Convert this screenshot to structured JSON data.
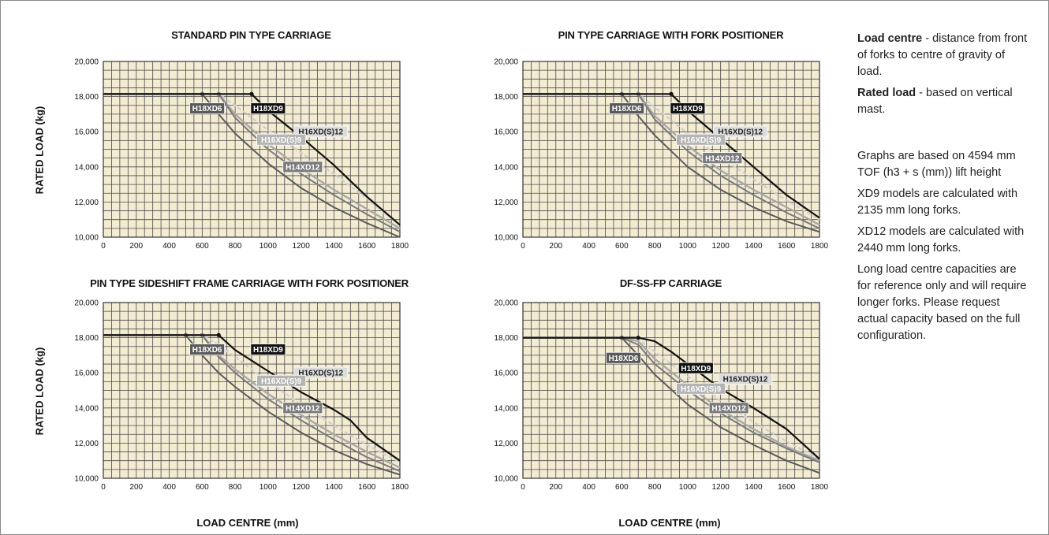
{
  "y_axis_label": "RATED LOAD (kg)",
  "x_axis_label": "LOAD CENTRE (mm)",
  "notes": {
    "load_centre_term": "Load centre",
    "load_centre_text": " - distance from front of forks to centre of gravity of load.",
    "rated_load_term": "Rated load",
    "rated_load_text": " - based on vertical mast.",
    "graphs_basis": "Graphs are based on 4594 mm TOF (h3 + s (mm)) lift height",
    "xd9_note": "XD9 models are calculated with 2135 mm long forks.",
    "xd12_note": "XD12 models are calculated with 2440 mm long forks.",
    "long_load_note": "Long load centre capacities are for reference only and will require longer forks. Please request actual capacity based on the full configuration."
  },
  "colors": {
    "plot_bg": "#f4ecd2",
    "grid": "#4a4a4a",
    "H18XD9": "#111111",
    "H18XD6": "#5a5a5a",
    "H16XD(S)9": "#a8a8a8",
    "H16XD(S)12": "#cfcfcf",
    "H14XD12": "#7a7a7a"
  },
  "chart_data": [
    {
      "type": "line",
      "title": "STANDARD PIN TYPE CARRIAGE",
      "xlabel": "",
      "ylabel": "RATED LOAD (kg)",
      "xlim": [
        0,
        1800
      ],
      "ylim": [
        10000,
        20000
      ],
      "x_ticks": [
        0,
        200,
        400,
        600,
        800,
        1000,
        1200,
        1400,
        1600,
        1800
      ],
      "y_ticks": [
        "10,000",
        "12,000",
        "14,000",
        "16,000",
        "18,000",
        "20,000"
      ],
      "grid": true,
      "series": [
        {
          "name": "H16XD(S)12",
          "points": [
            [
              0,
              18150
            ],
            [
              700,
              18150
            ],
            [
              800,
              17500
            ],
            [
              1000,
              16100
            ],
            [
              1200,
              14800
            ],
            [
              1400,
              13600
            ],
            [
              1600,
              12200
            ],
            [
              1800,
              10700
            ]
          ]
        },
        {
          "name": "H16XD(S)9",
          "points": [
            [
              0,
              18150
            ],
            [
              700,
              18150
            ],
            [
              800,
              17000
            ],
            [
              1000,
              15300
            ],
            [
              1200,
              13900
            ],
            [
              1400,
              12700
            ],
            [
              1600,
              11600
            ],
            [
              1800,
              10500
            ]
          ]
        },
        {
          "name": "H14XD12",
          "points": [
            [
              0,
              18150
            ],
            [
              700,
              18150
            ],
            [
              800,
              16800
            ],
            [
              1000,
              15000
            ],
            [
              1200,
              13600
            ],
            [
              1400,
              12400
            ],
            [
              1600,
              11300
            ],
            [
              1800,
              10300
            ]
          ]
        },
        {
          "name": "H18XD6",
          "points": [
            [
              0,
              18150
            ],
            [
              600,
              18150
            ],
            [
              700,
              17000
            ],
            [
              800,
              15900
            ],
            [
              1000,
              14200
            ],
            [
              1200,
              12800
            ],
            [
              1400,
              11700
            ],
            [
              1600,
              10800
            ],
            [
              1800,
              10000
            ]
          ]
        },
        {
          "name": "H18XD9",
          "points": [
            [
              0,
              18150
            ],
            [
              900,
              18150
            ],
            [
              1000,
              17200
            ],
            [
              1200,
              15700
            ],
            [
              1400,
              14100
            ],
            [
              1600,
              12300
            ],
            [
              1800,
              10700
            ]
          ]
        }
      ],
      "labels": [
        {
          "text": "H18XD6",
          "x": 630,
          "y": 17330
        },
        {
          "text": "H18XD9",
          "x": 1000,
          "y": 17330
        },
        {
          "text": "H16XD(S)12",
          "x": 1320,
          "y": 16010
        },
        {
          "text": "H16XD(S)9",
          "x": 1080,
          "y": 15550
        },
        {
          "text": "H14XD12",
          "x": 1210,
          "y": 14000
        }
      ]
    },
    {
      "type": "line",
      "title": "PIN TYPE CARRIAGE WITH FORK POSITIONER",
      "xlabel": "",
      "ylabel": "",
      "xlim": [
        0,
        1800
      ],
      "ylim": [
        10000,
        20000
      ],
      "x_ticks": [
        0,
        200,
        400,
        600,
        800,
        1000,
        1200,
        1400,
        1600,
        1800
      ],
      "y_ticks": [
        "10,000",
        "12,000",
        "14,000",
        "16,000",
        "18,000",
        "20,000"
      ],
      "grid": true,
      "series": [
        {
          "name": "H16XD(S)12",
          "points": [
            [
              0,
              18150
            ],
            [
              700,
              18150
            ],
            [
              800,
              17400
            ],
            [
              1000,
              15900
            ],
            [
              1200,
              14500
            ],
            [
              1400,
              13300
            ],
            [
              1600,
              12100
            ],
            [
              1800,
              11000
            ]
          ]
        },
        {
          "name": "H16XD(S)9",
          "points": [
            [
              0,
              18150
            ],
            [
              700,
              18150
            ],
            [
              800,
              16900
            ],
            [
              1000,
              15200
            ],
            [
              1200,
              13800
            ],
            [
              1400,
              12700
            ],
            [
              1600,
              11700
            ],
            [
              1800,
              10700
            ]
          ]
        },
        {
          "name": "H14XD12",
          "points": [
            [
              0,
              18150
            ],
            [
              700,
              18150
            ],
            [
              800,
              16700
            ],
            [
              1000,
              14900
            ],
            [
              1200,
              13500
            ],
            [
              1400,
              12400
            ],
            [
              1600,
              11400
            ],
            [
              1800,
              10500
            ]
          ]
        },
        {
          "name": "H18XD6",
          "points": [
            [
              0,
              18150
            ],
            [
              600,
              18150
            ],
            [
              700,
              16900
            ],
            [
              800,
              15800
            ],
            [
              1000,
              14000
            ],
            [
              1200,
              12700
            ],
            [
              1400,
              11700
            ],
            [
              1600,
              10900
            ],
            [
              1800,
              10300
            ]
          ]
        },
        {
          "name": "H18XD9",
          "points": [
            [
              0,
              18150
            ],
            [
              900,
              18150
            ],
            [
              1000,
              17200
            ],
            [
              1200,
              15600
            ],
            [
              1400,
              14000
            ],
            [
              1600,
              12400
            ],
            [
              1800,
              11100
            ]
          ]
        }
      ],
      "labels": [
        {
          "text": "H18XD6",
          "x": 630,
          "y": 17330
        },
        {
          "text": "H18XD9",
          "x": 1000,
          "y": 17330
        },
        {
          "text": "H16XD(S)12",
          "x": 1320,
          "y": 16010
        },
        {
          "text": "H16XD(S)9",
          "x": 1080,
          "y": 15550
        },
        {
          "text": "H14XD12",
          "x": 1210,
          "y": 14500
        }
      ]
    },
    {
      "type": "line",
      "title": "PIN TYPE SIDESHIFT FRAME CARRIAGE WITH FORK POSITIONER",
      "xlabel": "LOAD CENTRE (mm)",
      "ylabel": "RATED LOAD (kg)",
      "xlim": [
        0,
        1800
      ],
      "ylim": [
        10000,
        20000
      ],
      "x_ticks": [
        0,
        200,
        400,
        600,
        800,
        1000,
        1200,
        1400,
        1600,
        1800
      ],
      "y_ticks": [
        "10,000",
        "12,000",
        "14,000",
        "16,000",
        "18,000",
        "20,000"
      ],
      "grid": true,
      "series": [
        {
          "name": "H16XD(S)12",
          "points": [
            [
              0,
              18150
            ],
            [
              600,
              18150
            ],
            [
              700,
              17600
            ],
            [
              800,
              16900
            ],
            [
              1000,
              15500
            ],
            [
              1200,
              14200
            ],
            [
              1400,
              13000
            ],
            [
              1600,
              11900
            ],
            [
              1800,
              10900
            ]
          ]
        },
        {
          "name": "H16XD(S)9",
          "points": [
            [
              0,
              18150
            ],
            [
              600,
              18150
            ],
            [
              700,
              17000
            ],
            [
              800,
              16200
            ],
            [
              1000,
              14800
            ],
            [
              1200,
              13600
            ],
            [
              1400,
              12500
            ],
            [
              1600,
              11500
            ],
            [
              1800,
              10600
            ]
          ]
        },
        {
          "name": "H14XD12",
          "points": [
            [
              0,
              18150
            ],
            [
              600,
              18150
            ],
            [
              700,
              16900
            ],
            [
              800,
              16000
            ],
            [
              1000,
              14500
            ],
            [
              1200,
              13300
            ],
            [
              1400,
              12200
            ],
            [
              1600,
              11200
            ],
            [
              1800,
              10400
            ]
          ]
        },
        {
          "name": "H18XD6",
          "points": [
            [
              0,
              18150
            ],
            [
              500,
              18150
            ],
            [
              600,
              17000
            ],
            [
              700,
              16000
            ],
            [
              800,
              15200
            ],
            [
              1000,
              13800
            ],
            [
              1200,
              12600
            ],
            [
              1400,
              11600
            ],
            [
              1600,
              10800
            ],
            [
              1800,
              10200
            ]
          ]
        },
        {
          "name": "H18XD9",
          "points": [
            [
              0,
              18150
            ],
            [
              700,
              18150
            ],
            [
              800,
              17300
            ],
            [
              1000,
              16100
            ],
            [
              1200,
              14900
            ],
            [
              1400,
              13900
            ],
            [
              1500,
              13300
            ],
            [
              1600,
              12300
            ],
            [
              1800,
              11000
            ]
          ]
        }
      ],
      "labels": [
        {
          "text": "H18XD6",
          "x": 630,
          "y": 17330
        },
        {
          "text": "H18XD9",
          "x": 1000,
          "y": 17330
        },
        {
          "text": "H16XD(S)12",
          "x": 1320,
          "y": 16010
        },
        {
          "text": "H16XD(S)9",
          "x": 1080,
          "y": 15550
        },
        {
          "text": "H14XD12",
          "x": 1210,
          "y": 14000
        }
      ]
    },
    {
      "type": "line",
      "title": "DF-SS-FP CARRIAGE",
      "xlabel": "LOAD CENTRE (mm)",
      "ylabel": "",
      "xlim": [
        0,
        1800
      ],
      "ylim": [
        10000,
        20000
      ],
      "x_ticks": [
        0,
        200,
        400,
        600,
        800,
        1000,
        1200,
        1400,
        1600,
        1800
      ],
      "y_ticks": [
        "10,000",
        "12,000",
        "14,000",
        "16,000",
        "18,000",
        "20,000"
      ],
      "grid": true,
      "series": [
        {
          "name": "H16XD(S)12",
          "points": [
            [
              0,
              18000
            ],
            [
              600,
              18000
            ],
            [
              700,
              17900
            ],
            [
              800,
              17200
            ],
            [
              1000,
              15800
            ],
            [
              1200,
              14400
            ],
            [
              1400,
              13200
            ],
            [
              1600,
              12100
            ],
            [
              1800,
              11100
            ]
          ]
        },
        {
          "name": "H16XD(S)9",
          "points": [
            [
              0,
              18000
            ],
            [
              600,
              18000
            ],
            [
              700,
              17800
            ],
            [
              800,
              16800
            ],
            [
              1000,
              15300
            ],
            [
              1200,
              13900
            ],
            [
              1400,
              12800
            ],
            [
              1600,
              11800
            ],
            [
              1800,
              11000
            ]
          ]
        },
        {
          "name": "H14XD12",
          "points": [
            [
              0,
              18000
            ],
            [
              600,
              18000
            ],
            [
              700,
              17600
            ],
            [
              800,
              16500
            ],
            [
              1000,
              15000
            ],
            [
              1200,
              13700
            ],
            [
              1400,
              12600
            ],
            [
              1600,
              11700
            ],
            [
              1800,
              10900
            ]
          ]
        },
        {
          "name": "H18XD6",
          "points": [
            [
              0,
              18000
            ],
            [
              600,
              18000
            ],
            [
              700,
              17000
            ],
            [
              800,
              15900
            ],
            [
              1000,
              14200
            ],
            [
              1200,
              12900
            ],
            [
              1400,
              11900
            ],
            [
              1600,
              11000
            ],
            [
              1800,
              10300
            ]
          ]
        },
        {
          "name": "H18XD9",
          "points": [
            [
              0,
              18000
            ],
            [
              700,
              18000
            ],
            [
              800,
              17800
            ],
            [
              900,
              17200
            ],
            [
              1000,
              16500
            ],
            [
              1200,
              15100
            ],
            [
              1400,
              14000
            ],
            [
              1600,
              12800
            ],
            [
              1800,
              11100
            ]
          ]
        }
      ],
      "labels": [
        {
          "text": "H18XD6",
          "x": 610,
          "y": 16850
        },
        {
          "text": "H18XD9",
          "x": 1050,
          "y": 16270
        },
        {
          "text": "H16XD(S)12",
          "x": 1350,
          "y": 15650
        },
        {
          "text": "H16XD(S)9",
          "x": 1080,
          "y": 15100
        },
        {
          "text": "H14XD12",
          "x": 1250,
          "y": 14000
        }
      ]
    }
  ]
}
